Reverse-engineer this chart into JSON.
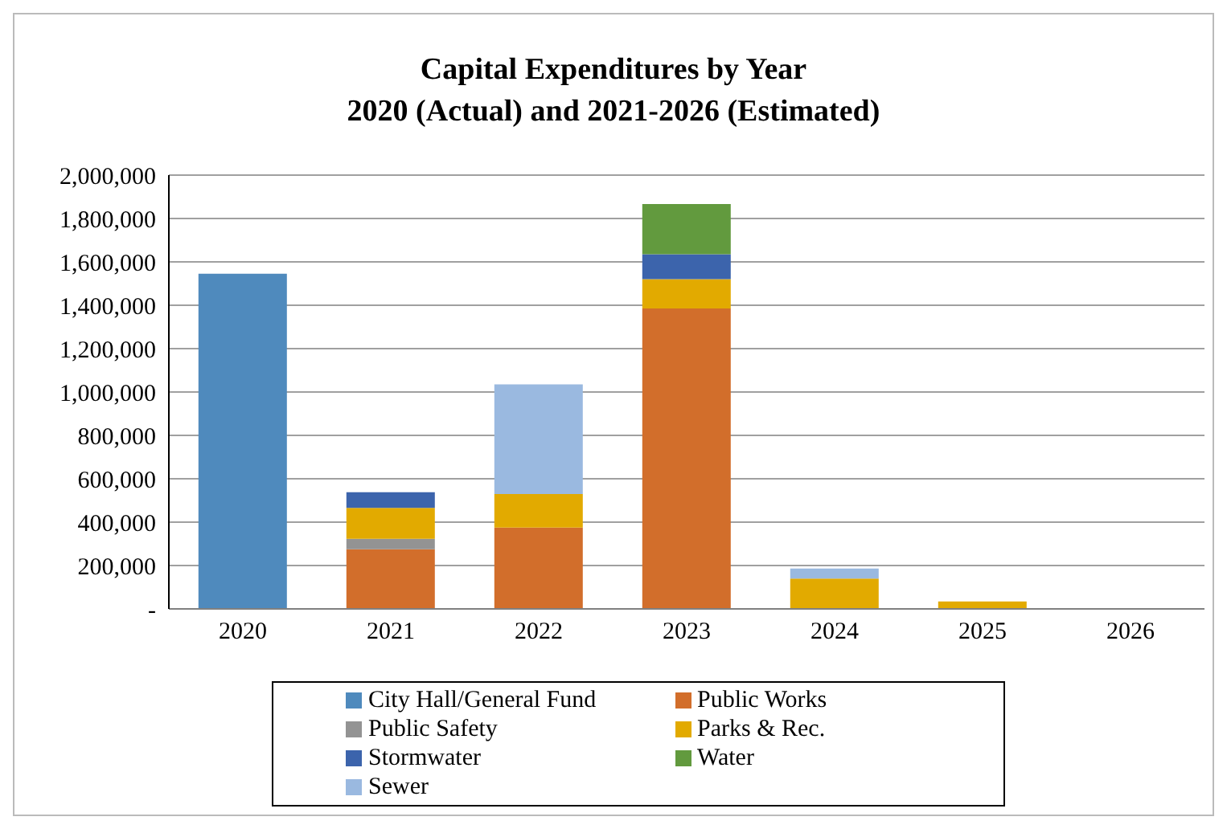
{
  "chart_data": {
    "type": "bar",
    "title": "Capital Expenditures by Year\n2020 (Actual) and 2021-2026 (Estimated)",
    "categories": [
      "2020",
      "2021",
      "2022",
      "2023",
      "2024",
      "2025",
      "2026"
    ],
    "stacked": true,
    "series": [
      {
        "name": "City Hall/General Fund",
        "color": "#4f8abd",
        "values": [
          1545000,
          null,
          null,
          null,
          null,
          null,
          null
        ]
      },
      {
        "name": "Public Works",
        "color": "#d26e2b",
        "values": [
          null,
          275000,
          375000,
          1385000,
          null,
          null,
          null
        ]
      },
      {
        "name": "Public Safety",
        "color": "#939393",
        "values": [
          null,
          48000,
          null,
          null,
          null,
          null,
          null
        ]
      },
      {
        "name": "Parks & Rec.",
        "color": "#e2aa00",
        "values": [
          null,
          143000,
          155000,
          135000,
          140000,
          34000,
          null
        ]
      },
      {
        "name": "Stormwater",
        "color": "#3c64ac",
        "values": [
          null,
          72000,
          null,
          115000,
          null,
          null,
          null
        ]
      },
      {
        "name": "Water",
        "color": "#629a3e",
        "values": [
          null,
          null,
          null,
          232000,
          null,
          null,
          null
        ]
      },
      {
        "name": "Sewer",
        "color": "#9ab9e0",
        "values": [
          null,
          null,
          505000,
          null,
          46000,
          null,
          null
        ]
      }
    ],
    "ylim": [
      0,
      2000000
    ],
    "yticks": [
      {
        "value": 0,
        "label": "-"
      },
      {
        "value": 200000,
        "label": "200,000"
      },
      {
        "value": 400000,
        "label": "400,000"
      },
      {
        "value": 600000,
        "label": "600,000"
      },
      {
        "value": 800000,
        "label": "800,000"
      },
      {
        "value": 1000000,
        "label": "1,000,000"
      },
      {
        "value": 1200000,
        "label": "1,200,000"
      },
      {
        "value": 1400000,
        "label": "1,400,000"
      },
      {
        "value": 1600000,
        "label": "1,600,000"
      },
      {
        "value": 1800000,
        "label": "1,800,000"
      },
      {
        "value": 2000000,
        "label": "2,000,000"
      }
    ],
    "grid": "y",
    "legend": "bottom"
  }
}
